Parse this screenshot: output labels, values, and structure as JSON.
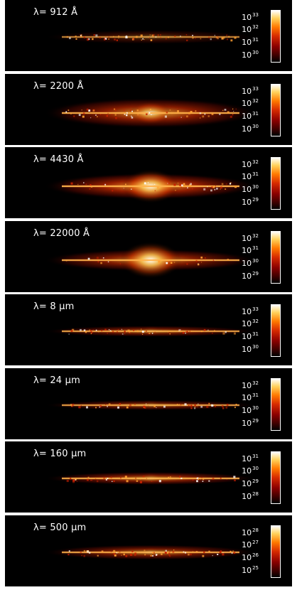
{
  "panels": [
    {
      "label": "λ= 912 Å",
      "colorbar_ticks": [
        {
          "base": "10",
          "exp": "33"
        },
        {
          "base": "10",
          "exp": "32"
        },
        {
          "base": "10",
          "exp": "31"
        },
        {
          "base": "10",
          "exp": "30"
        }
      ],
      "disk": {
        "intensity": 0.35,
        "bulge": 0.05,
        "thickness": 0.5,
        "clumpy": 1.0
      }
    },
    {
      "label": "λ= 2200 Å",
      "colorbar_ticks": [
        {
          "base": "10",
          "exp": "33"
        },
        {
          "base": "10",
          "exp": "32"
        },
        {
          "base": "10",
          "exp": "31"
        },
        {
          "base": "10",
          "exp": "30"
        }
      ],
      "disk": {
        "intensity": 0.9,
        "bulge": 0.55,
        "thickness": 1.3,
        "clumpy": 0.8
      }
    },
    {
      "label": "λ= 4430 Å",
      "colorbar_ticks": [
        {
          "base": "10",
          "exp": "32"
        },
        {
          "base": "10",
          "exp": "31"
        },
        {
          "base": "10",
          "exp": "30"
        },
        {
          "base": "10",
          "exp": "29"
        }
      ],
      "disk": {
        "intensity": 1.0,
        "bulge": 0.9,
        "thickness": 1.1,
        "clumpy": 0.6
      }
    },
    {
      "label": "λ= 22000 Å",
      "colorbar_ticks": [
        {
          "base": "10",
          "exp": "32"
        },
        {
          "base": "10",
          "exp": "31"
        },
        {
          "base": "10",
          "exp": "30"
        },
        {
          "base": "10",
          "exp": "29"
        }
      ],
      "disk": {
        "intensity": 0.85,
        "bulge": 1.0,
        "thickness": 0.9,
        "clumpy": 0.2
      }
    },
    {
      "label": "λ= 8 μm",
      "colorbar_ticks": [
        {
          "base": "10",
          "exp": "33"
        },
        {
          "base": "10",
          "exp": "32"
        },
        {
          "base": "10",
          "exp": "31"
        },
        {
          "base": "10",
          "exp": "30"
        }
      ],
      "disk": {
        "intensity": 0.7,
        "bulge": 0.1,
        "thickness": 0.35,
        "clumpy": 0.7
      }
    },
    {
      "label": "λ= 24 μm",
      "colorbar_ticks": [
        {
          "base": "10",
          "exp": "32"
        },
        {
          "base": "10",
          "exp": "31"
        },
        {
          "base": "10",
          "exp": "30"
        },
        {
          "base": "10",
          "exp": "29"
        }
      ],
      "disk": {
        "intensity": 0.65,
        "bulge": 0.1,
        "thickness": 0.3,
        "clumpy": 0.6
      }
    },
    {
      "label": "λ= 160 μm",
      "colorbar_ticks": [
        {
          "base": "10",
          "exp": "31"
        },
        {
          "base": "10",
          "exp": "30"
        },
        {
          "base": "10",
          "exp": "29"
        },
        {
          "base": "10",
          "exp": "28"
        }
      ],
      "disk": {
        "intensity": 0.8,
        "bulge": 0.15,
        "thickness": 0.45,
        "clumpy": 0.6
      }
    },
    {
      "label": "λ= 500 μm",
      "colorbar_ticks": [
        {
          "base": "10",
          "exp": "28"
        },
        {
          "base": "10",
          "exp": "27"
        },
        {
          "base": "10",
          "exp": "26"
        },
        {
          "base": "10",
          "exp": "25"
        }
      ],
      "disk": {
        "intensity": 0.75,
        "bulge": 0.1,
        "thickness": 0.55,
        "clumpy": 0.8
      }
    }
  ],
  "colors": {
    "background": "#000000",
    "separator": "#ffffff",
    "hot": "#ffffff",
    "warm": "#ff8c1a",
    "cool": "#b81c00"
  }
}
